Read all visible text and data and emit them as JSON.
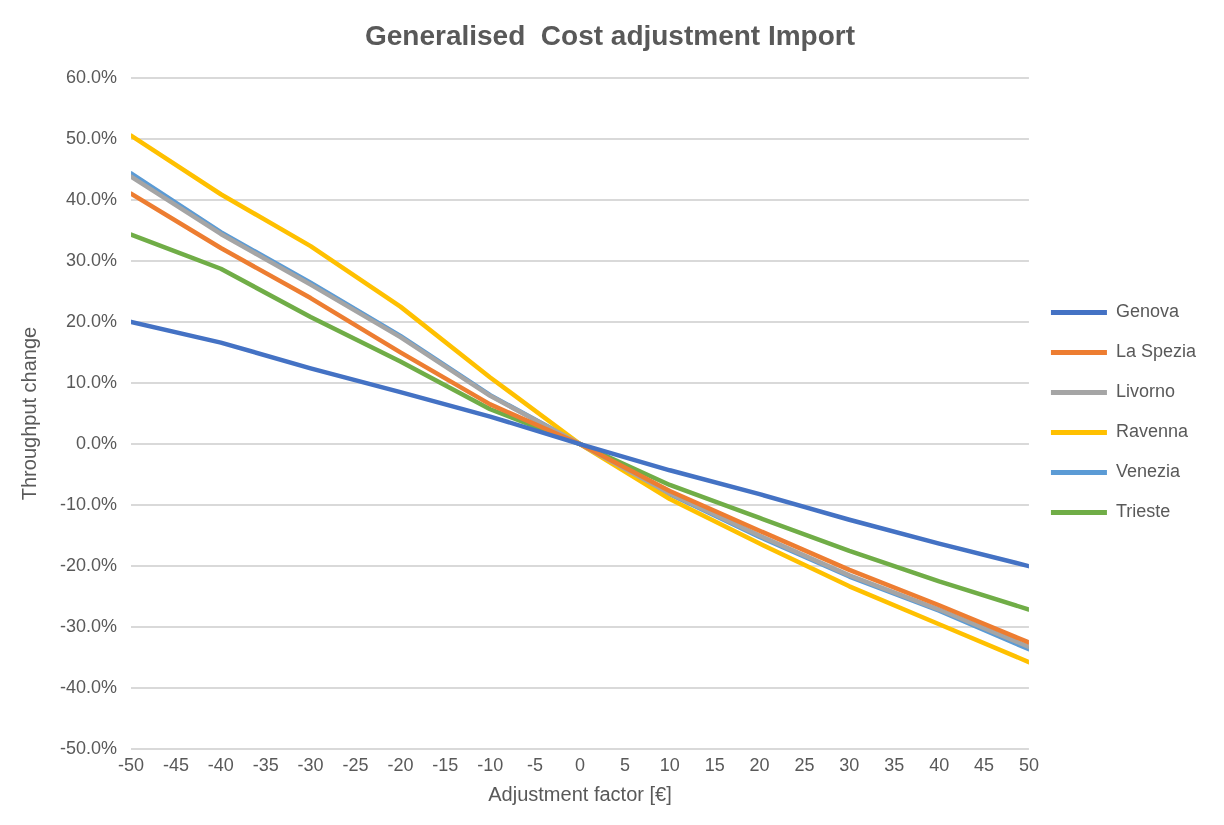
{
  "chart_data": {
    "type": "line",
    "title": "Generalised  Cost adjustment Import",
    "xlabel": "Adjustment factor [€]",
    "ylabel": "Throughput change",
    "x": [
      -50,
      -40,
      -30,
      -20,
      -10,
      0,
      10,
      20,
      30,
      40,
      50
    ],
    "series": [
      {
        "name": "Genova",
        "color": "#4472c4",
        "values": [
          20,
          16.6,
          12.4,
          8.5,
          4.5,
          0,
          -4.3,
          -8.2,
          -12.4,
          -16.3,
          -20
        ]
      },
      {
        "name": "La Spezia",
        "color": "#ed7d31",
        "values": [
          41,
          32.1,
          23.9,
          15,
          6.5,
          0,
          -7.7,
          -14.2,
          -20.6,
          -26.4,
          -32.5
        ]
      },
      {
        "name": "Livorno",
        "color": "#a5a5a5",
        "values": [
          43.8,
          34.4,
          26.1,
          17.5,
          7.9,
          0,
          -8.1,
          -15,
          -21.5,
          -27.1,
          -33.2
        ]
      },
      {
        "name": "Ravenna",
        "color": "#ffc000",
        "values": [
          50.5,
          40.9,
          32.4,
          22.5,
          10.9,
          0,
          -9,
          -16.3,
          -23.3,
          -29.5,
          -35.7
        ]
      },
      {
        "name": "Venezia",
        "color": "#5b9bd5",
        "values": [
          44.3,
          34.7,
          26.4,
          17.7,
          8,
          0,
          -8.2,
          -15.2,
          -21.7,
          -27.3,
          -33.6
        ]
      },
      {
        "name": "Trieste",
        "color": "#70ad47",
        "values": [
          34.3,
          28.7,
          20.8,
          13.5,
          5.7,
          0,
          -6.7,
          -12.1,
          -17.5,
          -22.5,
          -27.1
        ]
      }
    ],
    "xlim": [
      -50,
      50
    ],
    "xticks": [
      -50,
      -45,
      -40,
      -35,
      -30,
      -25,
      -20,
      -15,
      -10,
      -5,
      0,
      5,
      10,
      15,
      20,
      25,
      30,
      35,
      40,
      45,
      50
    ],
    "ylim": [
      -50,
      60
    ],
    "yticks": [
      {
        "value": -50,
        "label": "-50.0%"
      },
      {
        "value": -40,
        "label": "-40.0%"
      },
      {
        "value": -30,
        "label": "-30.0%"
      },
      {
        "value": -20,
        "label": "-20.0%"
      },
      {
        "value": -10,
        "label": "-10.0%"
      },
      {
        "value": 0,
        "label": "0.0%"
      },
      {
        "value": 10,
        "label": "10.0%"
      },
      {
        "value": 20,
        "label": "20.0%"
      },
      {
        "value": 30,
        "label": "30.0%"
      },
      {
        "value": 40,
        "label": "40.0%"
      },
      {
        "value": 50,
        "label": "50.0%"
      },
      {
        "value": 60,
        "label": "60.0%"
      }
    ],
    "grid": "y",
    "legend": "right",
    "marker": "none",
    "line_style": "solid"
  }
}
